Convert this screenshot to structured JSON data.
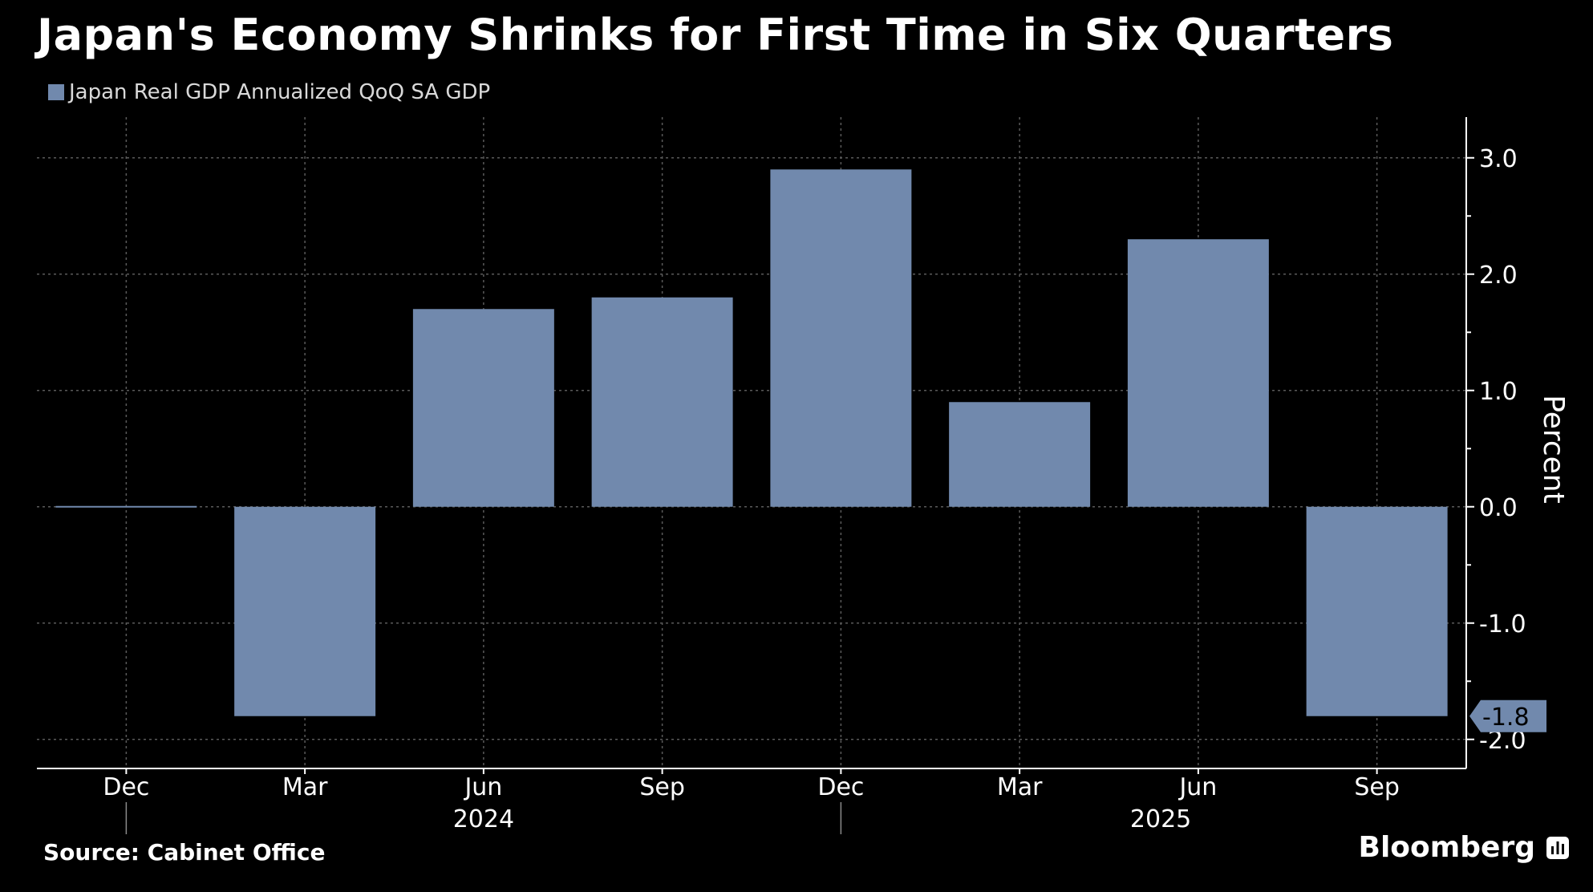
{
  "title": "Japan's Economy Shrinks for First Time in Six Quarters",
  "legend": {
    "label": "Japan Real GDP Annualized QoQ SA GDP"
  },
  "source": "Source: Cabinet Office",
  "brand": "Bloomberg",
  "brand_icon": "bloomberg-chart-icon",
  "colors": {
    "background": "#000000",
    "bar": "#7189ad",
    "grid": "#5a5a5a",
    "text": "#ffffff"
  },
  "chart_data": {
    "type": "bar",
    "title": "Japan's Economy Shrinks for First Time in Six Quarters",
    "xlabel": "",
    "ylabel": "Percent",
    "ylim": [
      -2.25,
      3.35
    ],
    "yticks": [
      3.0,
      2.0,
      1.0,
      0.0,
      -1.0,
      -2.0
    ],
    "ytick_labels": [
      "3.0",
      "2.0",
      "1.0",
      "0.0",
      "-1.0",
      "-2.0"
    ],
    "categories": [
      "Dec",
      "Mar",
      "Jun",
      "Sep",
      "Dec",
      "Mar",
      "Jun",
      "Sep"
    ],
    "year_labels": [
      {
        "label": "2024",
        "category_index": 2
      },
      {
        "label": "2025",
        "category_index": 6
      }
    ],
    "year_separators_after_index": [
      0,
      4
    ],
    "series": [
      {
        "name": "Japan Real GDP Annualized QoQ SA GDP",
        "values": [
          0.0,
          -1.8,
          1.7,
          1.8,
          2.9,
          0.9,
          2.3,
          -1.8
        ]
      }
    ],
    "last_value_label": "-1.8",
    "grid": true,
    "legend_position": "top-left",
    "y_axis_position": "right"
  }
}
